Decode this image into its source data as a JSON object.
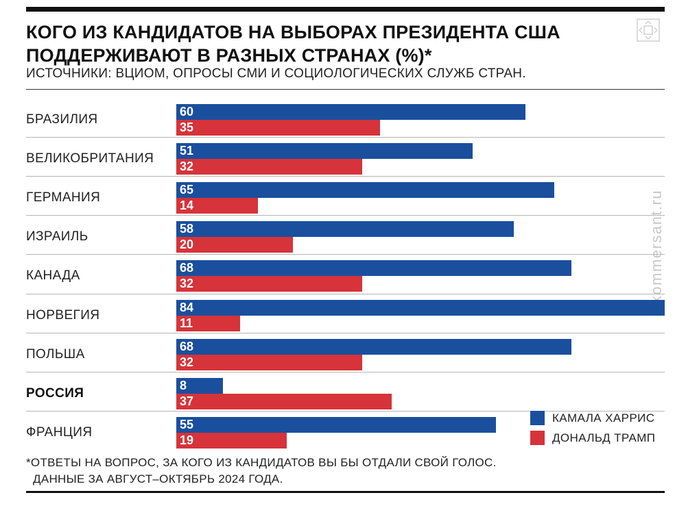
{
  "title": "КОГО ИЗ КАНДИДАТОВ НА ВЫБОРАХ ПРЕЗИДЕНТА США ПОДДЕРЖИВАЮТ В РАЗНЫХ СТРАНАХ (%)*",
  "subtitle": "ИСТОЧНИКИ: ВЦИОМ, ОПРОСЫ СМИ И СОЦИОЛОГИЧЕСКИХ СЛУЖБ СТРАН.",
  "watermark": "kommersant.ru",
  "footnote": {
    "line1": "*ОТВЕТЫ НА ВОПРОС, ЗА КОГО ИЗ КАНДИДАТОВ ВЫ БЫ ОТДАЛИ СВОЙ ГОЛОС.",
    "line2": "ДАННЫЕ ЗА АВГУСТ–ОКТЯБРЬ 2024 ГОДА."
  },
  "colors": {
    "harris": "#1a4f9e",
    "trump": "#d6333a",
    "text": "#222222",
    "rule": "#111111"
  },
  "chart_data": {
    "type": "bar",
    "orientation": "horizontal",
    "categories": [
      "БРАЗИЛИЯ",
      "ВЕЛИКОБРИТАНИЯ",
      "ГЕРМАНИЯ",
      "ИЗРАИЛЬ",
      "КАНАДА",
      "НОРВЕГИЯ",
      "ПОЛЬША",
      "РОССИЯ",
      "ФРАНЦИЯ"
    ],
    "highlighted_category": "РОССИЯ",
    "series": [
      {
        "name": "КАМАЛА ХАРРИС",
        "color": "#1a4f9e",
        "values": [
          60,
          51,
          65,
          58,
          68,
          84,
          68,
          8,
          55
        ]
      },
      {
        "name": "ДОНАЛЬД ТРАМП",
        "color": "#d6333a",
        "values": [
          35,
          32,
          14,
          20,
          32,
          11,
          32,
          37,
          19
        ]
      }
    ],
    "xlim": [
      0,
      84
    ],
    "grid": false,
    "legend_position": "bottom-right"
  }
}
